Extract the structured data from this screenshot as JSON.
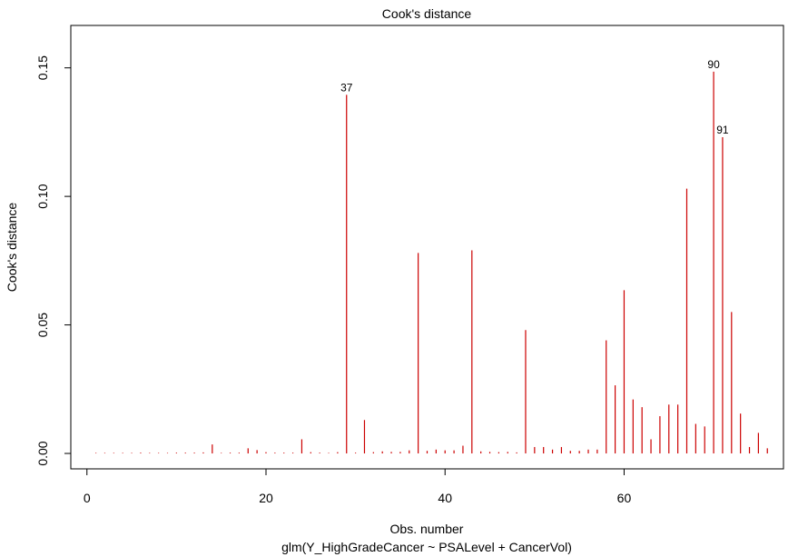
{
  "chart_data": {
    "type": "bar",
    "title": "Cook's distance",
    "xlabel": "Obs. number",
    "subtitle": "glm(Y_HighGradeCancer ~ PSALevel + CancerVol)",
    "ylabel": "Cook's distance",
    "xlim": [
      -1.8,
      77.8
    ],
    "ylim": [
      -0.006,
      0.1665
    ],
    "x_ticks": [
      0,
      20,
      40,
      60
    ],
    "x_tick_labels": [
      "0",
      "20",
      "40",
      "60"
    ],
    "y_ticks": [
      0.0,
      0.05,
      0.1,
      0.15
    ],
    "y_tick_labels": [
      "0.00",
      "0.05",
      "0.10",
      "0.15"
    ],
    "bar_color": "#cc0000",
    "x": [
      1,
      2,
      3,
      4,
      5,
      6,
      7,
      8,
      9,
      10,
      11,
      12,
      13,
      14,
      15,
      16,
      17,
      18,
      19,
      20,
      21,
      22,
      23,
      24,
      25,
      26,
      27,
      28,
      29,
      30,
      31,
      32,
      33,
      34,
      35,
      36,
      37,
      38,
      39,
      40,
      41,
      42,
      43,
      44,
      45,
      46,
      47,
      48,
      49,
      50,
      51,
      52,
      53,
      54,
      55,
      56,
      57,
      58,
      59,
      60,
      61,
      62,
      63,
      64,
      65,
      66,
      67,
      68,
      69,
      70,
      71,
      72,
      73,
      74,
      75,
      76
    ],
    "values": [
      0.0001,
      0.0001,
      0.0001,
      0.0001,
      0.0001,
      0.0003,
      0.0001,
      0.0001,
      0.0002,
      0.0003,
      0.0003,
      0.0003,
      0.0004,
      0.0035,
      0.0001,
      0.0003,
      0.0003,
      0.002,
      0.0013,
      0.0005,
      0.0003,
      0.0003,
      0.0003,
      0.0055,
      0.0005,
      0.0003,
      0.0002,
      0.0005,
      0.1395,
      0.0003,
      0.013,
      0.0005,
      0.0008,
      0.0006,
      0.0006,
      0.0012,
      0.078,
      0.001,
      0.0015,
      0.0012,
      0.0012,
      0.003,
      0.079,
      0.0008,
      0.0006,
      0.0005,
      0.0006,
      0.0004,
      0.048,
      0.0025,
      0.0025,
      0.0015,
      0.0025,
      0.001,
      0.001,
      0.0015,
      0.0015,
      0.044,
      0.0265,
      0.0635,
      0.021,
      0.018,
      0.0055,
      0.0145,
      0.019,
      0.019,
      0.103,
      0.0115,
      0.0105,
      0.1485,
      0.123,
      0.055,
      0.0155,
      0.0025,
      0.008,
      0.002
    ],
    "annotations": [
      {
        "x": 29,
        "label": "37"
      },
      {
        "x": 70,
        "label": "90"
      },
      {
        "x": 71,
        "label": "91"
      }
    ]
  }
}
